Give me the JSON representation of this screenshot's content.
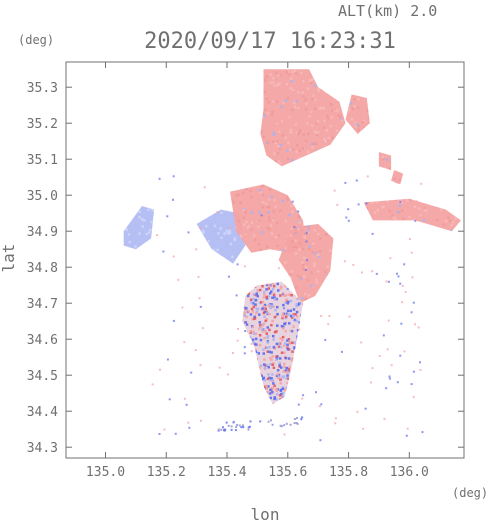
{
  "chart_data": {
    "type": "heatmap",
    "title": "2020/09/17 16:23:31",
    "altitude_label": "ALT(km) 2.0",
    "xlabel": "lon",
    "ylabel": "lat",
    "x_unit": "(deg)",
    "y_unit": "(deg)",
    "xlim": [
      134.87,
      136.18
    ],
    "ylim": [
      34.27,
      35.37
    ],
    "x_ticks": [
      135.0,
      135.2,
      135.4,
      135.6,
      135.8,
      136.0
    ],
    "x_tick_labels": [
      "135.0",
      "135.2",
      "135.4",
      "135.6",
      "135.8",
      "136.0"
    ],
    "y_ticks": [
      34.3,
      34.4,
      34.5,
      34.6,
      34.7,
      34.8,
      34.9,
      35.0,
      35.1,
      35.2,
      35.3
    ],
    "y_tick_labels": [
      "34.3",
      "34.4",
      "34.5",
      "34.6",
      "34.7",
      "34.8",
      "34.9",
      "35.0",
      "35.1",
      "35.2",
      "35.3"
    ],
    "grid": false,
    "colors": {
      "positive": "#f4a3a3",
      "negative": "#a9b4f2",
      "strong_positive": "#e0585f",
      "strong_negative": "#5b6cf0",
      "axis": "#707070"
    },
    "regions": [
      {
        "name": "north-red-block",
        "sign": "positive",
        "points": [
          [
            135.52,
            35.35
          ],
          [
            135.67,
            35.35
          ],
          [
            135.7,
            35.3
          ],
          [
            135.77,
            35.26
          ],
          [
            135.79,
            35.2
          ],
          [
            135.74,
            35.14
          ],
          [
            135.66,
            35.11
          ],
          [
            135.58,
            35.08
          ],
          [
            135.53,
            35.11
          ],
          [
            135.51,
            35.17
          ],
          [
            135.52,
            35.24
          ]
        ]
      },
      {
        "name": "northeast-red-patch",
        "sign": "positive",
        "points": [
          [
            135.81,
            35.28
          ],
          [
            135.86,
            35.27
          ],
          [
            135.87,
            35.2
          ],
          [
            135.83,
            35.17
          ],
          [
            135.79,
            35.21
          ]
        ]
      },
      {
        "name": "small-red-patch-a",
        "sign": "positive",
        "points": [
          [
            135.9,
            35.12
          ],
          [
            135.94,
            35.11
          ],
          [
            135.94,
            35.07
          ],
          [
            135.9,
            35.08
          ]
        ]
      },
      {
        "name": "small-red-patch-b",
        "sign": "positive",
        "points": [
          [
            135.95,
            35.07
          ],
          [
            135.98,
            35.06
          ],
          [
            135.97,
            35.03
          ],
          [
            135.94,
            35.04
          ]
        ]
      },
      {
        "name": "east-red-band",
        "sign": "positive",
        "points": [
          [
            135.85,
            34.98
          ],
          [
            136.0,
            34.99
          ],
          [
            136.12,
            34.96
          ],
          [
            136.17,
            34.93
          ],
          [
            136.14,
            34.9
          ],
          [
            136.02,
            34.93
          ],
          [
            135.88,
            34.93
          ]
        ]
      },
      {
        "name": "west-blue-blob",
        "sign": "negative",
        "points": [
          [
            135.06,
            34.9
          ],
          [
            135.12,
            34.97
          ],
          [
            135.16,
            34.96
          ],
          [
            135.15,
            34.88
          ],
          [
            135.1,
            34.85
          ],
          [
            135.06,
            34.86
          ]
        ]
      },
      {
        "name": "central-blue-area",
        "sign": "negative",
        "points": [
          [
            135.3,
            34.92
          ],
          [
            135.38,
            34.96
          ],
          [
            135.44,
            34.95
          ],
          [
            135.46,
            34.86
          ],
          [
            135.42,
            34.81
          ],
          [
            135.35,
            34.85
          ]
        ]
      },
      {
        "name": "central-red-block",
        "sign": "positive",
        "points": [
          [
            135.41,
            35.01
          ],
          [
            135.52,
            35.03
          ],
          [
            135.6,
            35.0
          ],
          [
            135.65,
            34.93
          ],
          [
            135.66,
            34.86
          ],
          [
            135.61,
            34.84
          ],
          [
            135.54,
            34.85
          ],
          [
            135.48,
            34.84
          ],
          [
            135.43,
            34.9
          ]
        ]
      },
      {
        "name": "east-red-lobe",
        "sign": "positive",
        "points": [
          [
            135.61,
            34.91
          ],
          [
            135.7,
            34.92
          ],
          [
            135.75,
            34.88
          ],
          [
            135.74,
            34.79
          ],
          [
            135.69,
            34.72
          ],
          [
            135.64,
            34.7
          ],
          [
            135.61,
            34.77
          ],
          [
            135.57,
            34.82
          ]
        ]
      },
      {
        "name": "south-mixed-block",
        "sign": "mixed",
        "points": [
          [
            135.5,
            34.75
          ],
          [
            135.58,
            34.76
          ],
          [
            135.65,
            34.7
          ],
          [
            135.63,
            34.6
          ],
          [
            135.61,
            34.51
          ],
          [
            135.59,
            34.44
          ],
          [
            135.55,
            34.42
          ],
          [
            135.52,
            34.47
          ],
          [
            135.49,
            34.58
          ],
          [
            135.45,
            34.65
          ],
          [
            135.46,
            34.72
          ]
        ]
      }
    ],
    "speckle_seed": 1917
  }
}
